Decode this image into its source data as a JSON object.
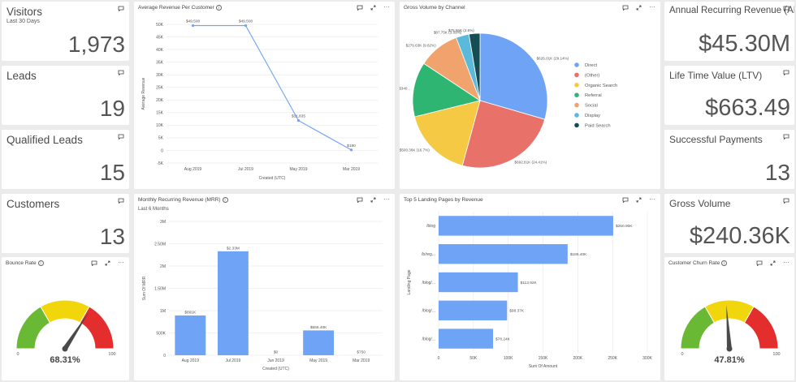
{
  "kpis": {
    "visitors": {
      "title": "Visitors",
      "subtitle": "Last 30 Days",
      "value": "1,973"
    },
    "leads": {
      "title": "Leads",
      "value": "19"
    },
    "qualified": {
      "title": "Qualified Leads",
      "value": "15"
    },
    "customers": {
      "title": "Customers",
      "value": "13"
    },
    "arr": {
      "title": "Annual Recurring Revenue (ARR)",
      "value": "$45.30M"
    },
    "ltv": {
      "title": "Life Time Value (LTV)",
      "value": "$663.49"
    },
    "payments": {
      "title": "Successful Payments",
      "value": "13"
    },
    "gross": {
      "title": "Gross Volume",
      "value": "$240.36K"
    }
  },
  "icons": {
    "comment": "comment-icon",
    "expand": "expand-icon",
    "more": "more-icon",
    "info": "info-icon"
  },
  "colors": {
    "accent": "#6fa3f5",
    "gauge_green": "#6ab934",
    "gauge_yellow": "#f2d60c",
    "gauge_red": "#e42e2e"
  },
  "charts": {
    "avg_revenue": {
      "title": "Average Revenue Per Customer",
      "chart_data": {
        "type": "line",
        "categories": [
          "Aug 2019",
          "Jul 2019",
          "May 2019",
          "Mar 2019"
        ],
        "values": [
          49500,
          49500,
          11835,
          180
        ],
        "labels": [
          "$49,500",
          "$49,500",
          "$11,835",
          "$180"
        ],
        "yticks": [
          "-5K",
          "0",
          "5K",
          "10K",
          "15K",
          "20K",
          "25K",
          "30K",
          "35K",
          "40K",
          "45K",
          "50K"
        ],
        "ylim": [
          -5000,
          50000
        ],
        "xlabel": "Created (UTC)",
        "ylabel": "Average Revenue"
      }
    },
    "gross_channel": {
      "title": "Gross Volume by Channel",
      "chart_data": {
        "type": "pie",
        "slices": [
          {
            "name": "Direct",
            "value": 29.14,
            "label": "$626.01K (29.14%)",
            "color": "#6fa3f5"
          },
          {
            "name": "(Other)",
            "value": 24.41,
            "label": "$692.81K (24.41%)",
            "color": "#e8716a"
          },
          {
            "name": "Organic Search",
            "value": 16.7,
            "label": "$500.36K (16.7%)",
            "color": "#f6c945"
          },
          {
            "name": "Referral",
            "value": 13.0,
            "label": "$340...",
            "color": "#2eb572"
          },
          {
            "name": "Social",
            "value": 9.82,
            "label": "$279.63K (9.82%)",
            "color": "#f0a36c"
          },
          {
            "name": "Display",
            "value": 3.09,
            "label": "$87.75K (3.09%)",
            "color": "#5bb9d9"
          },
          {
            "name": "Paid Search",
            "value": 2.6,
            "label": "$75.55K (2.6%)",
            "color": "#144d53"
          }
        ]
      }
    },
    "mrr": {
      "title": "Monthly Recurring Revenue (MRR)",
      "subtitle": "Last 6 Months",
      "chart_data": {
        "type": "bar",
        "categories": [
          "Aug 2019",
          "Jul 2019",
          "Jun 2019",
          "May 2019",
          "Mar 2019"
        ],
        "values": [
          891000,
          2330000,
          0,
          556400,
          750
        ],
        "labels": [
          "$891K",
          "$2.33M",
          "$0",
          "$556.40K",
          "$750"
        ],
        "yticks": [
          "0",
          "500K",
          "1M",
          "1.50M",
          "2M",
          "2.50M",
          "3M"
        ],
        "ylim": [
          0,
          3000000
        ],
        "xlabel": "Created (UTC)",
        "ylabel": "Sum Of MRR"
      }
    },
    "landing": {
      "title": "Top 5 Landing Pages by Revenue",
      "chart_data": {
        "type": "bar",
        "orientation": "horizontal",
        "categories": [
          "/blog",
          "/b/reg...",
          "/blog/...",
          "/blog/...",
          "/blog/..."
        ],
        "values": [
          250900,
          185400,
          113920,
          98370,
          78240
        ],
        "labels": [
          "$250.90K",
          "$185.40K",
          "$113.92K",
          "$98.37K",
          "$78.24K"
        ],
        "xticks": [
          "0",
          "50K",
          "100K",
          "150K",
          "200K",
          "250K",
          "300K"
        ],
        "xlim": [
          0,
          300000
        ],
        "xlabel": "Sum Of Amount",
        "ylabel": "Landing Page"
      }
    },
    "bounce": {
      "title": "Bounce Rate",
      "chart_data": {
        "type": "gauge",
        "value": 68.31,
        "label": "68.31%",
        "min": "0",
        "max": "100",
        "range": [
          0,
          100
        ]
      }
    },
    "churn": {
      "title": "Customer Churn Rate",
      "chart_data": {
        "type": "gauge",
        "value": 47.81,
        "label": "47.81%",
        "min": "0",
        "max": "100",
        "range": [
          0,
          100
        ]
      }
    }
  }
}
